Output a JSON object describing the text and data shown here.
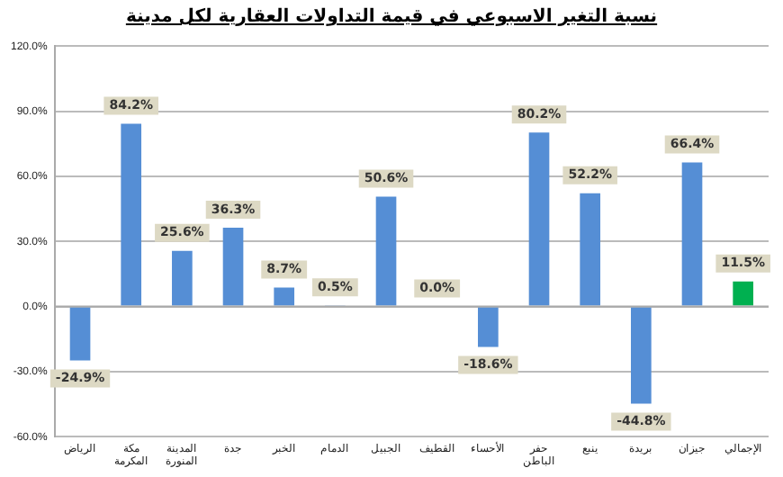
{
  "chart_data": {
    "type": "bar",
    "title": "نسبة التغير الاسبوعي في قيمة التداولات العقارية لكل مدينة",
    "categories": [
      "الرياض",
      "مكة المكرمة",
      "المدينة المنورة",
      "جدة",
      "الخبر",
      "الدمام",
      "الجبيل",
      "القطيف",
      "الأحساء",
      "حفر الباطن",
      "ينبع",
      "بريدة",
      "جيزان",
      "الإجمالي"
    ],
    "values": [
      -24.9,
      84.2,
      25.6,
      36.3,
      8.7,
      0.5,
      50.6,
      0.0,
      -18.6,
      80.2,
      52.2,
      -44.8,
      66.4,
      11.5
    ],
    "value_labels": [
      "-24.9%",
      "84.2%",
      "25.6%",
      "36.3%",
      "8.7%",
      "0.5%",
      "50.6%",
      "0.0%",
      "-18.6%",
      "80.2%",
      "52.2%",
      "-44.8%",
      "66.4%",
      "11.5%"
    ],
    "colors": [
      "#558ed5",
      "#558ed5",
      "#558ed5",
      "#558ed5",
      "#558ed5",
      "#558ed5",
      "#558ed5",
      "#558ed5",
      "#558ed5",
      "#558ed5",
      "#558ed5",
      "#558ed5",
      "#558ed5",
      "#00b050"
    ],
    "ylim": [
      -60,
      120
    ],
    "yticks": [
      {
        "value": -60,
        "label": "-60.0%"
      },
      {
        "value": -30,
        "label": "-30.0%"
      },
      {
        "value": 0,
        "label": "0.0%"
      },
      {
        "value": 30,
        "label": "30.0%"
      },
      {
        "value": 60,
        "label": "60.0%"
      },
      {
        "value": 90,
        "label": "90.0%"
      },
      {
        "value": 120,
        "label": "120.0%"
      }
    ],
    "grid": "y",
    "legend": false
  }
}
